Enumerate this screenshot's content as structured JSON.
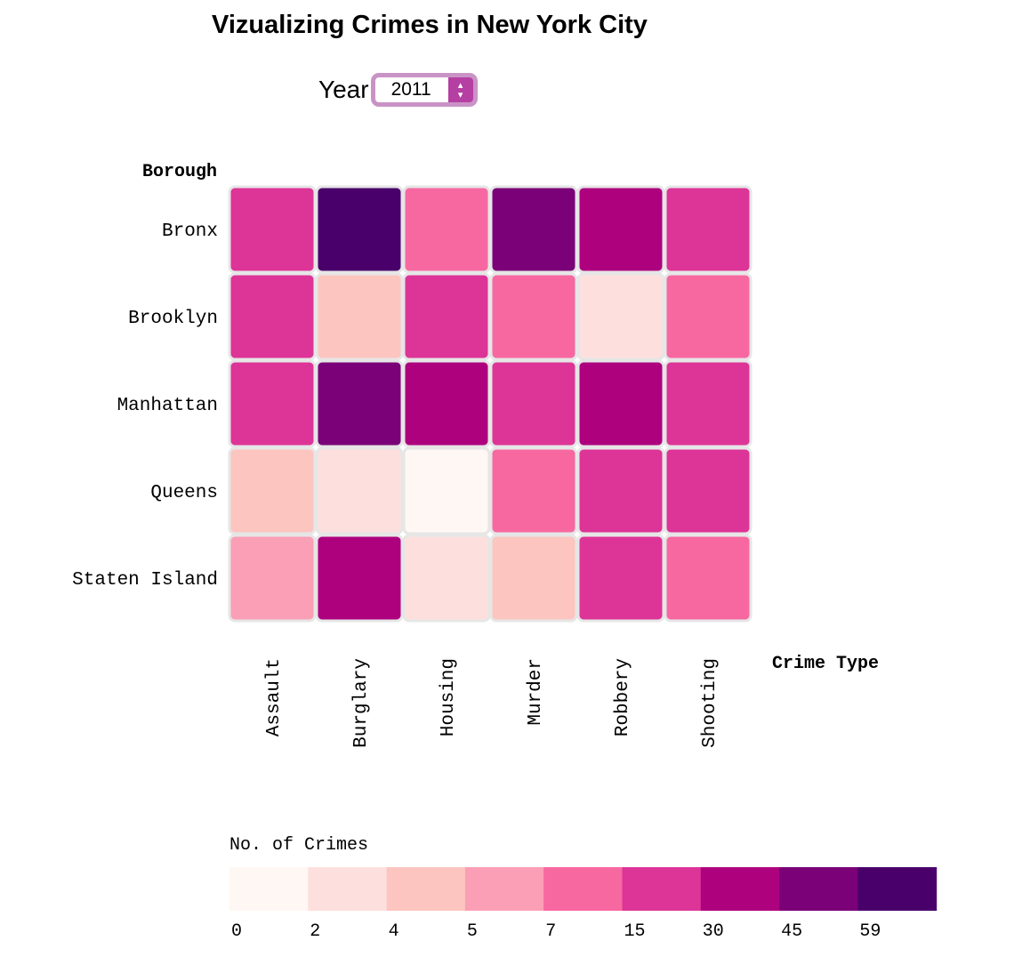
{
  "title": "Vizualizing Crimes in New York City",
  "year_selector": {
    "label": "Year",
    "value": "2011"
  },
  "chart_data": {
    "type": "heatmap",
    "title": "Vizualizing Crimes in New York City",
    "ylabel": "Borough",
    "xlabel": "Crime Type",
    "rows": [
      "Bronx",
      "Brooklyn",
      "Manhattan",
      "Queens",
      "Staten Island"
    ],
    "columns": [
      "Assault",
      "Burglary",
      "Housing",
      "Murder",
      "Robbery",
      "Shooting"
    ],
    "values": [
      [
        20,
        60,
        10,
        50,
        35,
        20
      ],
      [
        20,
        4.5,
        20,
        10,
        3,
        10
      ],
      [
        20,
        50,
        35,
        20,
        35,
        20
      ],
      [
        4.5,
        3,
        1,
        10,
        20,
        20
      ],
      [
        6,
        35,
        3,
        4.5,
        20,
        10
      ]
    ],
    "legend": {
      "title": "No. of Crimes",
      "thresholds": [
        "0",
        "2",
        "4",
        "5",
        "7",
        "15",
        "30",
        "45",
        "59"
      ],
      "colors": [
        "#fff7f3",
        "#fde0dd",
        "#fcc5c0",
        "#fa9fb5",
        "#f768a1",
        "#dd3497",
        "#ae017e",
        "#7a0177",
        "#49006a"
      ]
    }
  }
}
